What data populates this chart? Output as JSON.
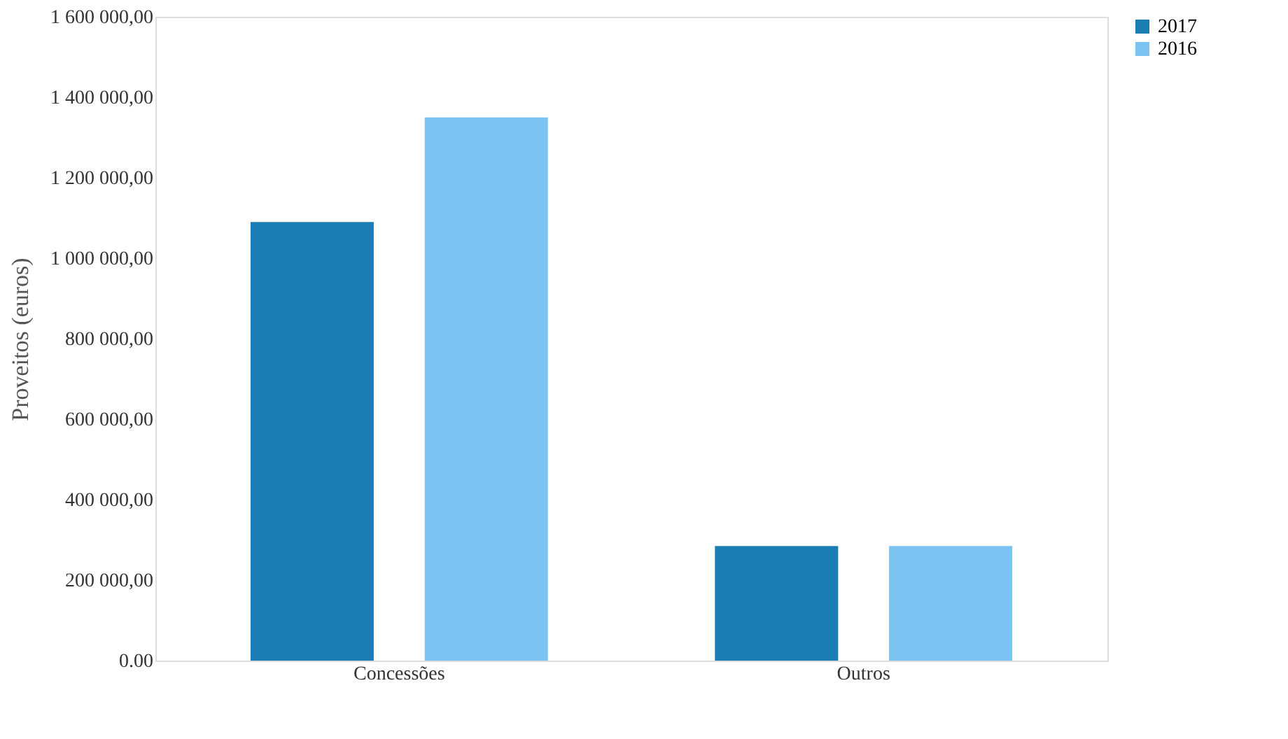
{
  "chart_data": {
    "type": "bar",
    "ylabel": "Proveitos (euros)",
    "categories": [
      "Concessões",
      "Outros"
    ],
    "series": [
      {
        "name": "2017",
        "color": "#1a7db3",
        "values": [
          1090000,
          285000
        ]
      },
      {
        "name": "2016",
        "color": "#7cc3f2",
        "values": [
          1350000,
          285000
        ]
      }
    ],
    "ylim": [
      0,
      1600000
    ],
    "yticks": [
      {
        "value": 0,
        "label": "0.00"
      },
      {
        "value": 200000,
        "label": "200 000,00"
      },
      {
        "value": 400000,
        "label": "400 000,00"
      },
      {
        "value": 600000,
        "label": "600 000,00"
      },
      {
        "value": 800000,
        "label": "800 000,00"
      },
      {
        "value": 1000000,
        "label": "1 000 000,00"
      },
      {
        "value": 1200000,
        "label": "1 200 000,00"
      },
      {
        "value": 1400000,
        "label": "1 400 000,00"
      },
      {
        "value": 1600000,
        "label": "1 600 000,00"
      }
    ],
    "grid": false,
    "legend": "right"
  }
}
